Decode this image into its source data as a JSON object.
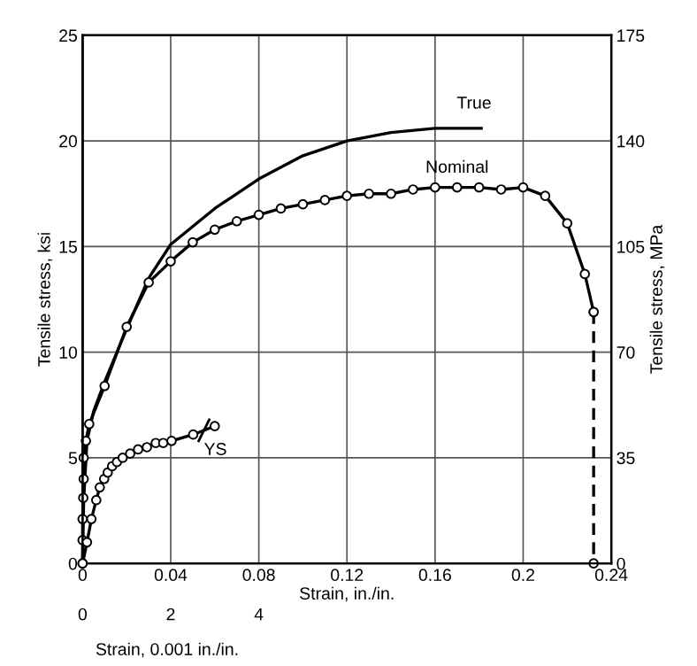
{
  "chart_data": {
    "type": "line",
    "xlabel": "Strain, in./in.",
    "ylabel": "Tensile stress, ksi",
    "y2label": "Tensile stress, MPa",
    "x2label": "Strain, 0.001 in./in.",
    "xlim": [
      0,
      0.24
    ],
    "xticks": [
      0,
      0.04,
      0.08,
      0.12,
      0.16,
      0.2,
      {
        "value": 0.24,
        "label": "0.24"
      }
    ],
    "ylim": [
      0,
      25
    ],
    "yticks": [
      0,
      5,
      10,
      15,
      20,
      25
    ],
    "y2lim": [
      0,
      175
    ],
    "y2ticks": [
      0,
      35,
      70,
      105,
      140,
      175
    ],
    "x2lim": [
      0,
      12
    ],
    "x2ticks": [
      0,
      2,
      4
    ],
    "grid": true,
    "color": "#000000",
    "series": [
      {
        "name": "True",
        "marker": "none",
        "line_style": "solid",
        "x": [
          0,
          0.0005,
          0.002,
          0.005,
          0.01,
          0.02,
          0.03,
          0.04,
          0.06,
          0.08,
          0.1,
          0.12,
          0.14,
          0.16,
          0.181
        ],
        "values": [
          0,
          3,
          5.8,
          7.2,
          8.6,
          11.1,
          13.5,
          15.1,
          16.8,
          18.2,
          19.3,
          20.0,
          20.4,
          20.6,
          20.6
        ]
      },
      {
        "name": "Nominal",
        "marker": "circle",
        "line_style": "solid",
        "x": [
          0,
          0,
          0,
          0.0003,
          0.0005,
          0.0005,
          0.0015,
          0.003,
          0.01,
          0.02,
          0.03,
          0.04,
          0.05,
          0.06,
          0.07,
          0.08,
          0.09,
          0.1,
          0.11,
          0.12,
          0.13,
          0.14,
          0.15,
          0.16,
          0.17,
          0.18,
          0.19,
          0.2,
          0.21,
          0.22,
          0.228,
          0.232
        ],
        "values": [
          0,
          1.1,
          2.1,
          3.1,
          4.0,
          5.0,
          5.8,
          6.6,
          8.4,
          11.2,
          13.3,
          14.3,
          15.2,
          15.8,
          16.2,
          16.5,
          16.8,
          17.0,
          17.2,
          17.4,
          17.5,
          17.5,
          17.7,
          17.8,
          17.8,
          17.8,
          17.7,
          17.8,
          17.4,
          16.1,
          13.7,
          11.9
        ]
      },
      {
        "marker": "circle",
        "line_style": "dashed",
        "x": [
          0.232,
          0.232
        ],
        "values": [
          11.9,
          0
        ]
      },
      {
        "axis": "x2",
        "marker": "circle",
        "line_style": "solid",
        "x": [
          0,
          0.1,
          0.2,
          0.31,
          0.39,
          0.49,
          0.57,
          0.67,
          0.78,
          0.91,
          1.08,
          1.26,
          1.46,
          1.66,
          1.83,
          2.02,
          2.51,
          3.0
        ],
        "values": [
          0,
          1.0,
          2.1,
          3.0,
          3.6,
          4.0,
          4.3,
          4.6,
          4.8,
          5.0,
          5.2,
          5.4,
          5.5,
          5.7,
          5.7,
          5.8,
          6.1,
          6.5
        ]
      }
    ],
    "annotations": [
      "YS"
    ]
  }
}
